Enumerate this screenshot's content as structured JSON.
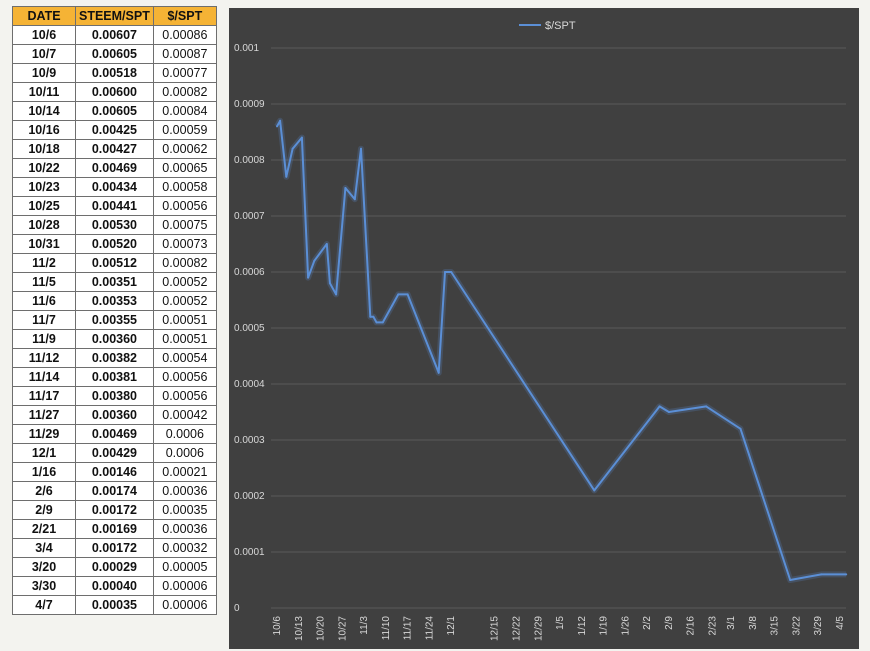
{
  "table": {
    "headers": [
      "DATE",
      "STEEM/SPT",
      "$/SPT"
    ],
    "rows": [
      [
        "10/6",
        "0.00607",
        "0.00086"
      ],
      [
        "10/7",
        "0.00605",
        "0.00087"
      ],
      [
        "10/9",
        "0.00518",
        "0.00077"
      ],
      [
        "10/11",
        "0.00600",
        "0.00082"
      ],
      [
        "10/14",
        "0.00605",
        "0.00084"
      ],
      [
        "10/16",
        "0.00425",
        "0.00059"
      ],
      [
        "10/18",
        "0.00427",
        "0.00062"
      ],
      [
        "10/22",
        "0.00469",
        "0.00065"
      ],
      [
        "10/23",
        "0.00434",
        "0.00058"
      ],
      [
        "10/25",
        "0.00441",
        "0.00056"
      ],
      [
        "10/28",
        "0.00530",
        "0.00075"
      ],
      [
        "10/31",
        "0.00520",
        "0.00073"
      ],
      [
        "11/2",
        "0.00512",
        "0.00082"
      ],
      [
        "11/5",
        "0.00351",
        "0.00052"
      ],
      [
        "11/6",
        "0.00353",
        "0.00052"
      ],
      [
        "11/7",
        "0.00355",
        "0.00051"
      ],
      [
        "11/9",
        "0.00360",
        "0.00051"
      ],
      [
        "11/12",
        "0.00382",
        "0.00054"
      ],
      [
        "11/14",
        "0.00381",
        "0.00056"
      ],
      [
        "11/17",
        "0.00380",
        "0.00056"
      ],
      [
        "11/27",
        "0.00360",
        "0.00042"
      ],
      [
        "11/29",
        "0.00469",
        "0.0006"
      ],
      [
        "12/1",
        "0.00429",
        "0.0006"
      ],
      [
        "1/16",
        "0.00146",
        "0.00021"
      ],
      [
        "2/6",
        "0.00174",
        "0.00036"
      ],
      [
        "2/9",
        "0.00172",
        "0.00035"
      ],
      [
        "2/21",
        "0.00169",
        "0.00036"
      ],
      [
        "3/4",
        "0.00172",
        "0.00032"
      ],
      [
        "3/20",
        "0.00029",
        "0.00005"
      ],
      [
        "3/30",
        "0.00040",
        "0.00006"
      ],
      [
        "4/7",
        "0.00035",
        "0.00006"
      ]
    ]
  },
  "chart_data": {
    "type": "line",
    "series": [
      {
        "name": "$/SPT",
        "color": "#5b8fd6",
        "x": [
          "10/6",
          "10/7",
          "10/9",
          "10/11",
          "10/14",
          "10/16",
          "10/18",
          "10/22",
          "10/23",
          "10/25",
          "10/28",
          "10/31",
          "11/2",
          "11/5",
          "11/6",
          "11/7",
          "11/9",
          "11/12",
          "11/14",
          "11/17",
          "11/27",
          "11/29",
          "12/1",
          "1/16",
          "2/6",
          "2/9",
          "2/21",
          "3/4",
          "3/20",
          "3/30",
          "4/7"
        ],
        "values": [
          0.00086,
          0.00087,
          0.00077,
          0.00082,
          0.00084,
          0.00059,
          0.00062,
          0.00065,
          0.00058,
          0.00056,
          0.00075,
          0.00073,
          0.00082,
          0.00052,
          0.00052,
          0.00051,
          0.00051,
          0.00054,
          0.00056,
          0.00056,
          0.00042,
          0.0006,
          0.0006,
          0.00021,
          0.00036,
          0.00035,
          0.00036,
          0.00032,
          5e-05,
          6e-05,
          6e-05
        ]
      }
    ],
    "x_tick_labels": [
      "10/6",
      "10/13",
      "10/20",
      "10/27",
      "11/3",
      "11/10",
      "11/17",
      "11/24",
      "12/1",
      "12/15",
      "12/22",
      "12/29",
      "1/5",
      "1/12",
      "1/19",
      "1/26",
      "2/2",
      "2/9",
      "2/16",
      "2/23",
      "3/1",
      "3/8",
      "3/15",
      "3/22",
      "3/29",
      "4/5"
    ],
    "y_tick_labels": [
      "0",
      "0.0001",
      "0.0002",
      "0.0003",
      "0.0004",
      "0.0005",
      "0.0006",
      "0.0007",
      "0.0008",
      "0.0009",
      "0.001"
    ],
    "ylim": [
      0,
      0.001
    ],
    "grid": true,
    "legend": "top-center",
    "background": "#404040"
  }
}
